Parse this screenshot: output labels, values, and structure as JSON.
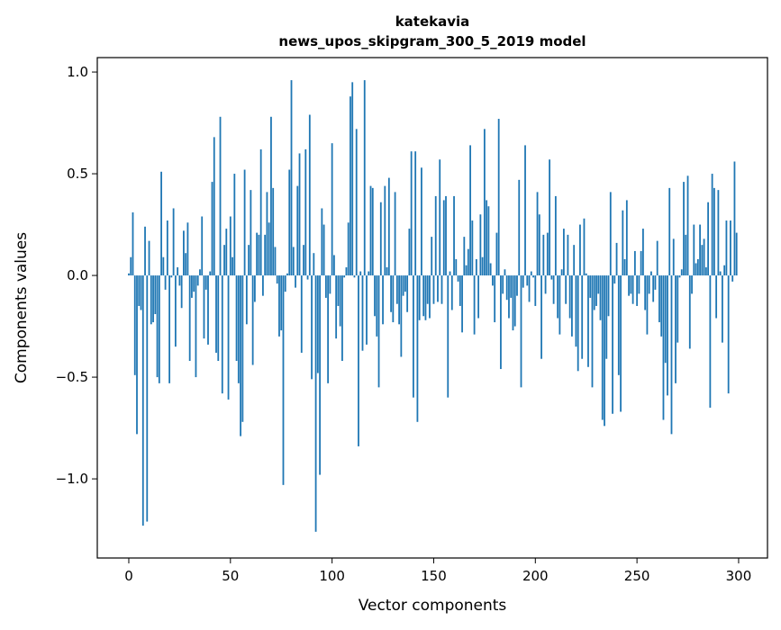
{
  "chart_data": {
    "type": "bar",
    "title": "katekavia",
    "subtitle": "news_upos_skipgram_300_5_2019 model",
    "xlabel": "Vector components",
    "ylabel": "Components values",
    "xlim": [
      -15.5,
      314.2
    ],
    "ylim": [
      -1.389,
      1.071
    ],
    "xticks": [
      0,
      50,
      100,
      150,
      200,
      250,
      300
    ],
    "xtick_labels": [
      "0",
      "50",
      "100",
      "150",
      "200",
      "250",
      "300"
    ],
    "yticks": [
      -1.0,
      -0.5,
      0.0,
      0.5,
      1.0
    ],
    "ytick_labels": [
      "−1.0",
      "−0.5",
      "0.0",
      "0.5",
      "1.0"
    ],
    "grid": false,
    "bar_color": "#1f77b4",
    "values": [
      0.01,
      0.09,
      0.31,
      -0.49,
      -0.78,
      -0.15,
      -0.17,
      -1.23,
      0.24,
      -1.21,
      0.17,
      -0.24,
      -0.23,
      -0.19,
      -0.5,
      -0.53,
      0.51,
      0.09,
      -0.07,
      0.27,
      -0.53,
      -0.01,
      0.33,
      -0.35,
      0.04,
      -0.05,
      -0.16,
      0.22,
      0.11,
      0.26,
      -0.42,
      -0.11,
      -0.08,
      -0.5,
      -0.05,
      0.03,
      0.29,
      -0.31,
      -0.07,
      -0.34,
      0.02,
      0.46,
      0.68,
      -0.38,
      -0.42,
      0.78,
      -0.58,
      0.15,
      0.23,
      -0.61,
      0.29,
      0.09,
      0.5,
      -0.42,
      -0.53,
      -0.79,
      -0.72,
      0.52,
      -0.24,
      0.15,
      0.42,
      -0.44,
      -0.13,
      0.21,
      0.2,
      0.62,
      -0.1,
      0.2,
      0.41,
      0.26,
      0.78,
      0.43,
      0.14,
      -0.04,
      -0.3,
      -0.27,
      -1.03,
      -0.08,
      0.01,
      0.52,
      0.96,
      0.14,
      -0.06,
      0.44,
      0.6,
      -0.38,
      0.15,
      0.62,
      -0.02,
      0.79,
      -0.51,
      0.11,
      -1.26,
      -0.48,
      -0.98,
      0.33,
      0.25,
      -0.11,
      -0.53,
      -0.09,
      0.65,
      0.1,
      -0.31,
      -0.15,
      -0.25,
      -0.42,
      -0.01,
      0.04,
      0.26,
      0.88,
      0.95,
      -0.01,
      0.72,
      -0.84,
      0.02,
      -0.37,
      0.96,
      -0.34,
      0.02,
      0.44,
      0.43,
      -0.2,
      -0.3,
      -0.55,
      0.36,
      -0.24,
      0.44,
      0.04,
      0.48,
      -0.18,
      -0.23,
      0.41,
      -0.14,
      -0.24,
      -0.4,
      -0.1,
      -0.08,
      -0.18,
      0.23,
      0.61,
      -0.6,
      0.61,
      -0.72,
      -0.22,
      0.53,
      -0.2,
      -0.22,
      -0.14,
      -0.21,
      0.19,
      -0.14,
      0.39,
      -0.13,
      0.57,
      -0.14,
      0.37,
      0.39,
      -0.6,
      0.02,
      -0.17,
      0.39,
      0.08,
      -0.03,
      -0.15,
      -0.28,
      0.19,
      0.05,
      0.13,
      0.64,
      0.27,
      -0.29,
      0.08,
      -0.21,
      0.3,
      0.09,
      0.72,
      0.37,
      0.34,
      0.06,
      -0.05,
      -0.23,
      0.21,
      0.77,
      -0.46,
      -0.09,
      0.03,
      -0.12,
      -0.21,
      -0.11,
      -0.27,
      -0.25,
      -0.1,
      0.47,
      -0.55,
      -0.06,
      0.64,
      -0.05,
      -0.13,
      0.02,
      -0.01,
      -0.15,
      0.41,
      0.3,
      -0.41,
      0.2,
      -0.09,
      0.21,
      0.57,
      -0.02,
      -0.14,
      0.39,
      -0.21,
      -0.29,
      0.03,
      0.23,
      -0.14,
      0.2,
      -0.21,
      -0.3,
      0.15,
      -0.35,
      -0.47,
      0.25,
      -0.41,
      0.28,
      0.01,
      -0.45,
      -0.11,
      -0.55,
      -0.17,
      -0.15,
      -0.09,
      -0.22,
      -0.71,
      -0.74,
      -0.41,
      -0.2,
      0.41,
      -0.68,
      -0.04,
      0.16,
      -0.49,
      -0.67,
      0.32,
      0.08,
      0.37,
      -0.1,
      -0.09,
      -0.14,
      0.12,
      -0.15,
      -0.09,
      0.12,
      0.23,
      -0.17,
      -0.29,
      -0.09,
      0.02,
      -0.13,
      -0.07,
      0.17,
      -0.23,
      -0.3,
      -0.71,
      -0.43,
      -0.59,
      0.43,
      -0.78,
      0.18,
      -0.53,
      -0.33,
      -0.01,
      0.03,
      0.46,
      0.2,
      0.49,
      -0.36,
      -0.09,
      0.25,
      0.06,
      0.08,
      0.25,
      0.15,
      0.18,
      0.04,
      0.36,
      -0.65,
      0.5,
      0.43,
      -0.21,
      0.42,
      0.02,
      -0.33,
      0.05,
      0.27,
      -0.58,
      0.27,
      -0.03,
      0.56,
      0.21
    ]
  }
}
